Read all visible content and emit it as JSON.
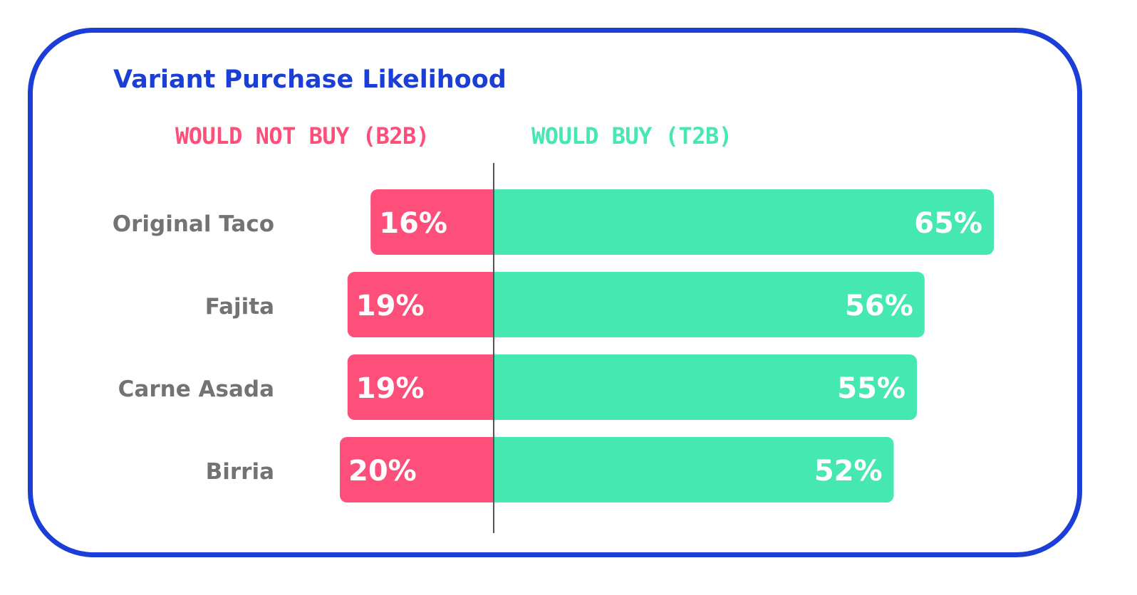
{
  "colors": {
    "border": "#1b3fd6",
    "title": "#1b3fd6",
    "negative": "#fd4f7a",
    "positive": "#45e8b1",
    "category_text": "#737373",
    "value_text": "#ffffff",
    "divider": "#555555"
  },
  "chart_data": {
    "type": "bar",
    "orientation": "horizontal-diverging",
    "title": "Variant Purchase Likelihood",
    "legend": {
      "left_label": "WOULD NOT BUY (B2B)",
      "right_label": "WOULD BUY (T2B)",
      "placement": "top"
    },
    "categories": [
      "Original Taco",
      "Fajita",
      "Carne Asada",
      "Birria"
    ],
    "series": [
      {
        "name": "WOULD NOT BUY (B2B)",
        "values": [
          16,
          19,
          19,
          20
        ],
        "labels": [
          "16%",
          "19%",
          "19%",
          "20%"
        ]
      },
      {
        "name": "WOULD BUY (T2B)",
        "values": [
          65,
          56,
          55,
          52
        ],
        "labels": [
          "65%",
          "56%",
          "55%",
          "52%"
        ]
      }
    ],
    "unit": "%",
    "grid": false
  }
}
